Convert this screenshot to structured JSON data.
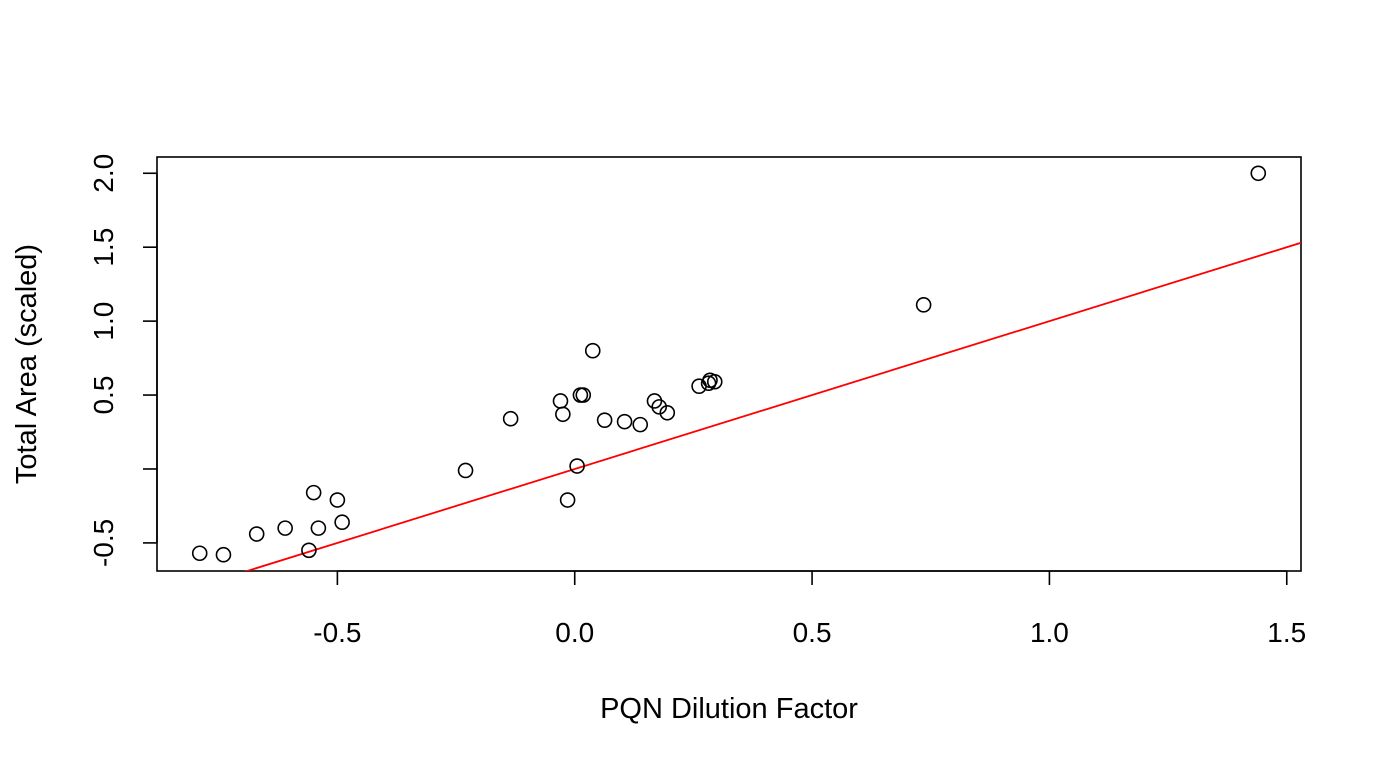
{
  "chart_data": {
    "type": "scatter",
    "title": "",
    "xlabel": "PQN Dilution Factor",
    "ylabel": "Total Area (scaled)",
    "xlim": [
      -0.88,
      1.53
    ],
    "ylim": [
      -0.69,
      2.11
    ],
    "xticks": [
      -0.5,
      0.0,
      0.5,
      1.0,
      1.5
    ],
    "xtick_labels": [
      "-0.5",
      "0.0",
      "0.5",
      "1.0",
      "1.5"
    ],
    "yticks": [
      -0.5,
      0.0,
      0.5,
      1.0,
      1.5,
      2.0
    ],
    "ytick_labels": [
      "-0.5",
      "",
      "0.5",
      "1.0",
      "1.5",
      "2.0"
    ],
    "grid": false,
    "legend": "none",
    "point_style": "open-circle",
    "point_color": "#000000",
    "points": [
      {
        "x": -0.79,
        "y": -0.57
      },
      {
        "x": -0.74,
        "y": -0.58
      },
      {
        "x": -0.67,
        "y": -0.44
      },
      {
        "x": -0.61,
        "y": -0.4
      },
      {
        "x": -0.56,
        "y": -0.55
      },
      {
        "x": -0.55,
        "y": -0.16
      },
      {
        "x": -0.54,
        "y": -0.4
      },
      {
        "x": -0.5,
        "y": -0.21
      },
      {
        "x": -0.49,
        "y": -0.36
      },
      {
        "x": -0.23,
        "y": -0.01
      },
      {
        "x": -0.135,
        "y": 0.34
      },
      {
        "x": -0.03,
        "y": 0.46
      },
      {
        "x": -0.025,
        "y": 0.37
      },
      {
        "x": -0.015,
        "y": -0.21
      },
      {
        "x": 0.005,
        "y": 0.02
      },
      {
        "x": 0.012,
        "y": 0.5
      },
      {
        "x": 0.018,
        "y": 0.5
      },
      {
        "x": 0.038,
        "y": 0.8
      },
      {
        "x": 0.063,
        "y": 0.33
      },
      {
        "x": 0.105,
        "y": 0.32
      },
      {
        "x": 0.138,
        "y": 0.3
      },
      {
        "x": 0.168,
        "y": 0.46
      },
      {
        "x": 0.178,
        "y": 0.42
      },
      {
        "x": 0.195,
        "y": 0.38
      },
      {
        "x": 0.262,
        "y": 0.56
      },
      {
        "x": 0.282,
        "y": 0.58
      },
      {
        "x": 0.285,
        "y": 0.6
      },
      {
        "x": 0.295,
        "y": 0.59
      },
      {
        "x": 0.735,
        "y": 1.11
      },
      {
        "x": 1.44,
        "y": 2.0
      }
    ],
    "lines": [
      {
        "type": "identity",
        "slope": 1.0,
        "intercept": 0.0,
        "color": "#ff0000"
      }
    ]
  }
}
